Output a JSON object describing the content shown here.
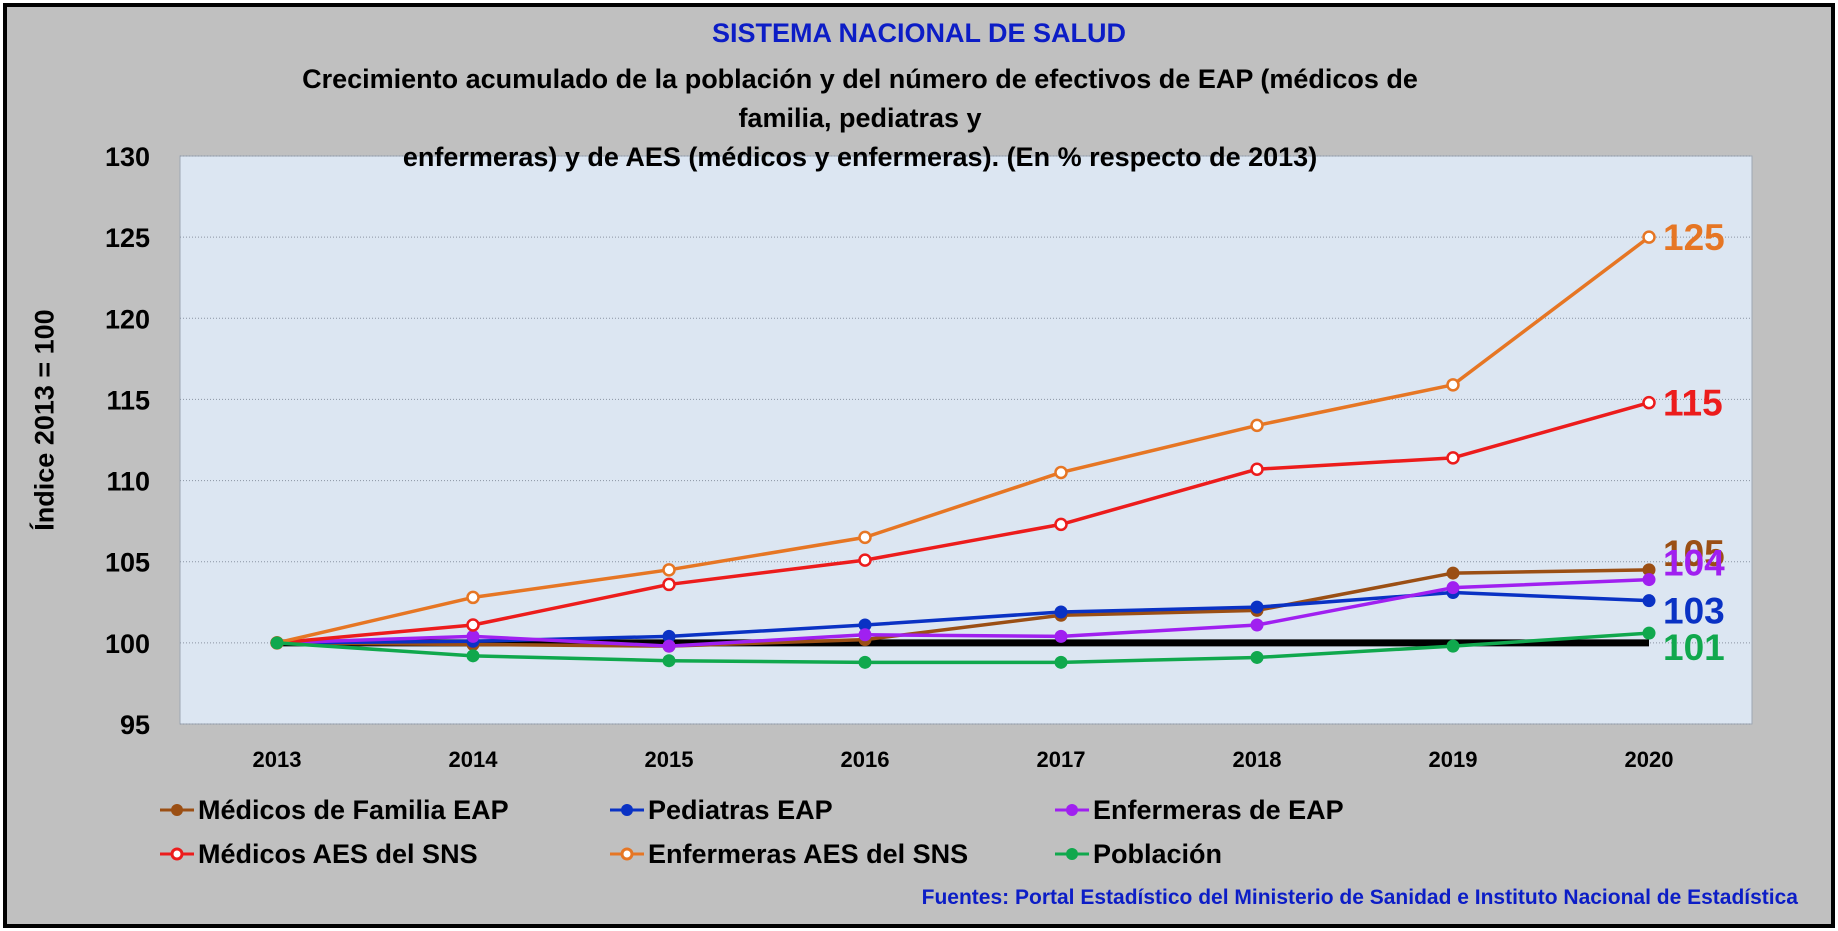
{
  "chart_data": {
    "type": "line",
    "title": "SISTEMA NACIONAL DE SALUD",
    "subtitle_lines": [
      "Crecimiento acumulado de la población y del número de efectivos de EAP (médicos de familia, pediatras y",
      "enfermeras) y de AES (médicos y enfermeras). (En % respecto de 2013)"
    ],
    "xlabel": "",
    "ylabel": "Índice 2013 = 100",
    "x": [
      "2013",
      "2014",
      "2015",
      "2016",
      "2017",
      "2018",
      "2019",
      "2020"
    ],
    "ylim": [
      95,
      130
    ],
    "yticks": [
      "95",
      "100",
      "105",
      "110",
      "115",
      "120",
      "125",
      "130"
    ],
    "grid": true,
    "baseline": 100,
    "series": [
      {
        "name": "Médicos de Familia EAP",
        "color": "#9b4f14",
        "marker": "filled",
        "values": [
          100,
          99.9,
          99.8,
          100.2,
          101.7,
          102.0,
          104.3,
          104.5
        ],
        "end_label": "105"
      },
      {
        "name": "Pediatras EAP",
        "color": "#0a32c4",
        "marker": "filled",
        "values": [
          100,
          100.1,
          100.4,
          101.1,
          101.9,
          102.2,
          103.1,
          102.6
        ],
        "end_label": "103"
      },
      {
        "name": "Enfermeras de EAP",
        "color": "#a020f0",
        "marker": "filled",
        "values": [
          100,
          100.4,
          99.8,
          100.5,
          100.4,
          101.1,
          103.4,
          103.9
        ],
        "end_label": "104"
      },
      {
        "name": "Médicos AES del SNS",
        "color": "#ec1c1c",
        "marker": "hollow",
        "values": [
          100,
          101.1,
          103.6,
          105.1,
          107.3,
          110.7,
          111.4,
          114.8
        ],
        "end_label": "115"
      },
      {
        "name": "Enfermeras AES del SNS",
        "color": "#e67624",
        "marker": "hollow",
        "values": [
          100,
          102.8,
          104.5,
          106.5,
          110.5,
          113.4,
          115.9,
          125.0
        ],
        "end_label": "125"
      },
      {
        "name": "Población",
        "color": "#10a84d",
        "marker": "filled",
        "values": [
          100,
          99.2,
          98.9,
          98.8,
          98.8,
          99.1,
          99.8,
          100.6
        ],
        "end_label": "101"
      }
    ],
    "legend_position": "bottom",
    "source": "Fuentes:  Portal Estadístico del Ministerio de Sanidad e Instituto Nacional de Estadística"
  }
}
